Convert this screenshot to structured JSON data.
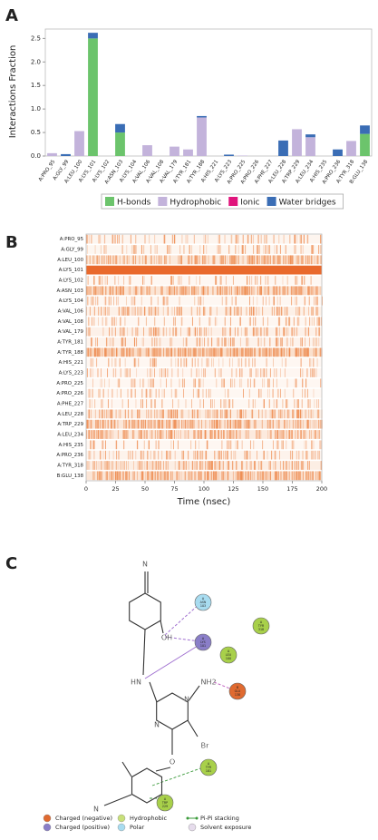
{
  "panel_labels": [
    "A",
    "B",
    "C"
  ],
  "chart_data": {
    "type": "bar",
    "stacked": true,
    "ylabel": "Interactions Fraction",
    "categories": [
      "A:PRO_95",
      "A:GLY_99",
      "A:LEU_100",
      "A:LYS_101",
      "A:LYS_102",
      "A:ASN_103",
      "A:LYS_104",
      "A:VAL_106",
      "A:VAL_108",
      "A:VAL_179",
      "A:TYR_181",
      "A:TYR_188",
      "A:HIS_221",
      "A:LYS_223",
      "A:PRO_225",
      "A:PRO_226",
      "A:PHE_227",
      "A:LEU_228",
      "A:TRP_229",
      "A:LEU_234",
      "A:HIS_235",
      "A:PRO_236",
      "A:TYR_318",
      "B:GLU_138"
    ],
    "series": [
      {
        "name": "H-bonds",
        "color": "#6cc46c",
        "values": [
          0,
          0,
          0,
          2.5,
          0,
          0.5,
          0,
          0,
          0,
          0,
          0,
          0,
          0,
          0,
          0,
          0,
          0,
          0,
          0,
          0,
          0,
          0,
          0,
          0.47
        ]
      },
      {
        "name": "Hydrophobic",
        "color": "#c3b3db",
        "values": [
          0.06,
          0,
          0.53,
          0,
          0,
          0,
          0,
          0.23,
          0,
          0.2,
          0.14,
          0.82,
          0,
          0,
          0.01,
          0,
          0,
          0,
          0.57,
          0.4,
          0,
          0,
          0.32,
          0
        ]
      },
      {
        "name": "Ionic",
        "color": "#e0147c",
        "values": [
          0,
          0,
          0,
          0,
          0,
          0,
          0,
          0,
          0,
          0,
          0,
          0,
          0,
          0,
          0,
          0,
          0,
          0,
          0,
          0,
          0,
          0,
          0,
          0
        ]
      },
      {
        "name": "Water bridges",
        "color": "#3a6db5",
        "values": [
          0,
          0.04,
          0,
          0.12,
          0,
          0.18,
          0,
          0,
          0,
          0,
          0,
          0.03,
          0,
          0.03,
          0,
          0,
          0,
          0.33,
          0,
          0.06,
          0,
          0.14,
          0,
          0.18
        ]
      }
    ],
    "ylim": [
      0,
      2.7
    ],
    "yticks": [
      {
        "value": 0,
        "label": "0.0"
      },
      0.5,
      {
        "value": 1,
        "label": "1.0"
      },
      1.5,
      {
        "value": 2,
        "label": "2.0"
      },
      2.5
    ]
  },
  "heatmap": {
    "xlabel": "Time (nsec)",
    "xlim": [
      0,
      200
    ],
    "xticks": [
      0,
      25,
      50,
      75,
      100,
      125,
      150,
      175,
      200
    ],
    "rows": [
      "A:PRO_95",
      "A:GLY_99",
      "A:LEU_100",
      "A:LYS_101",
      "A:LYS_102",
      "A:ASN_103",
      "A:LYS_104",
      "A:VAL_106",
      "A:VAL_108",
      "A:VAL_179",
      "A:TYR_181",
      "A:TYR_188",
      "A:HIS_221",
      "A:LYS_223",
      "A:PRO_225",
      "A:PRO_226",
      "A:PHE_227",
      "A:LEU_228",
      "A:TRP_229",
      "A:LEU_234",
      "A:HIS_235",
      "A:PRO_236",
      "A:TYR_318",
      "B:GLU_138"
    ]
  },
  "diagram": {
    "atoms": [
      "N",
      "OH",
      "HN",
      "N",
      "N",
      "NH2",
      "Br",
      "O",
      "N"
    ],
    "nodes": [
      {
        "lines": [
          "A",
          "ASN",
          "103"
        ],
        "kind": "polar"
      },
      {
        "lines": [
          "A",
          "LYS",
          "101"
        ],
        "kind": "positive"
      },
      {
        "lines": [
          "A",
          "LEU",
          "100"
        ],
        "kind": "hydrophobic"
      },
      {
        "lines": [
          "A",
          "TYR",
          "318"
        ],
        "kind": "hydrophobic"
      },
      {
        "lines": [
          "B",
          "GLU",
          "138"
        ],
        "kind": "negative"
      },
      {
        "lines": [
          "A",
          "TYR",
          "181"
        ],
        "kind": "hydrophobic"
      },
      {
        "lines": [
          "A",
          "TRP",
          "229"
        ],
        "kind": "hydrophobic"
      }
    ],
    "legend": [
      "Charged (negative)",
      "Charged (positive)",
      "Hydrophobic",
      "Polar",
      "Pi-Pi stacking",
      "Solvent exposure"
    ]
  }
}
